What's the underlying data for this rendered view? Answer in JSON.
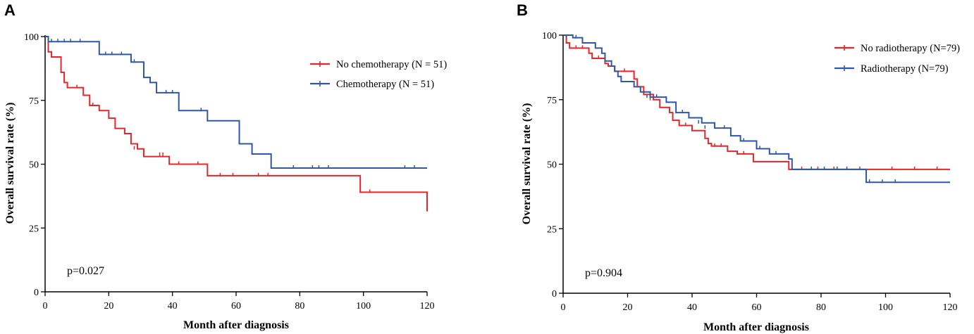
{
  "chart_data": [
    {
      "type": "line",
      "panel": "A",
      "xlabel": "Month after diagnosis",
      "ylabel": "Overall survival rate (%)",
      "xlim": [
        0,
        120
      ],
      "ylim": [
        0,
        100
      ],
      "xticks": [
        0,
        20,
        40,
        60,
        80,
        100,
        120
      ],
      "yticks": [
        0,
        25,
        50,
        75,
        100
      ],
      "p_value": "p=0.027",
      "legend_position": "top-right",
      "series": [
        {
          "name": "No chemotherapy (N = 51)",
          "color": "#e8262a",
          "steps": [
            [
              0,
              100
            ],
            [
              1,
              94
            ],
            [
              2,
              92
            ],
            [
              5,
              86
            ],
            [
              6,
              82
            ],
            [
              7,
              80
            ],
            [
              12,
              77
            ],
            [
              14,
              73
            ],
            [
              17,
              71
            ],
            [
              20,
              68
            ],
            [
              22,
              64
            ],
            [
              25,
              62
            ],
            [
              27,
              58
            ],
            [
              29,
              56
            ],
            [
              31,
              53
            ],
            [
              39,
              50
            ],
            [
              51,
              45.5
            ],
            [
              99,
              39
            ],
            [
              120,
              31.5
            ]
          ],
          "censors": [
            [
              10,
              80
            ],
            [
              15,
              73
            ],
            [
              28,
              56
            ],
            [
              36,
              53.5
            ],
            [
              37,
              53.5
            ],
            [
              42,
              50
            ],
            [
              48,
              50
            ],
            [
              55,
              45.5
            ],
            [
              59,
              45.5
            ],
            [
              67,
              45.5
            ],
            [
              70,
              45.5
            ],
            [
              102,
              39
            ]
          ],
          "end_x": 120
        },
        {
          "name": "Chemotherapy (N = 51)",
          "color": "#2e58a6",
          "steps": [
            [
              0,
              100
            ],
            [
              1,
              98
            ],
            [
              17,
              93
            ],
            [
              27,
              90
            ],
            [
              31,
              84
            ],
            [
              33,
              82
            ],
            [
              35,
              78
            ],
            [
              42,
              71
            ],
            [
              51,
              67
            ],
            [
              61,
              58
            ],
            [
              65,
              54
            ],
            [
              71,
              48.5
            ]
          ],
          "censors": [
            [
              2,
              98
            ],
            [
              4,
              98
            ],
            [
              6,
              98
            ],
            [
              8,
              98
            ],
            [
              11,
              98
            ],
            [
              19,
              93
            ],
            [
              21,
              93
            ],
            [
              24,
              93
            ],
            [
              28,
              90
            ],
            [
              38,
              78
            ],
            [
              40,
              78
            ],
            [
              49,
              71
            ],
            [
              78,
              48.5
            ],
            [
              84,
              48.5
            ],
            [
              86,
              48.5
            ],
            [
              89,
              48.5
            ],
            [
              113,
              48.5
            ],
            [
              116,
              48.5
            ]
          ],
          "end_x": 120
        }
      ]
    },
    {
      "type": "line",
      "panel": "B",
      "xlabel": "Month after diagnosis",
      "ylabel": "Overall survival rate (%)",
      "xlim": [
        0,
        120
      ],
      "ylim": [
        0,
        100
      ],
      "xticks": [
        0,
        20,
        40,
        60,
        80,
        100,
        120
      ],
      "yticks": [
        0,
        25,
        50,
        75,
        100
      ],
      "p_value": "p=0.904",
      "legend_position": "top-right",
      "series": [
        {
          "name": "No radiotherapy (N=79)",
          "color": "#e8262a",
          "steps": [
            [
              0,
              100
            ],
            [
              1,
              97
            ],
            [
              2,
              95
            ],
            [
              8,
              93
            ],
            [
              9,
              91
            ],
            [
              13,
              89
            ],
            [
              14,
              88
            ],
            [
              16,
              86
            ],
            [
              22,
              83
            ],
            [
              23,
              80
            ],
            [
              25,
              77
            ],
            [
              28,
              75
            ],
            [
              30,
              72
            ],
            [
              33,
              70
            ],
            [
              34,
              67
            ],
            [
              36,
              65
            ],
            [
              40,
              63
            ],
            [
              44,
              60
            ],
            [
              45,
              58
            ],
            [
              46,
              57
            ],
            [
              51,
              55
            ],
            [
              54,
              54
            ],
            [
              59,
              51
            ],
            [
              70,
              48
            ]
          ],
          "censors": [
            [
              4,
              95
            ],
            [
              6,
              95
            ],
            [
              11,
              91
            ],
            [
              19,
              86
            ],
            [
              27,
              75
            ],
            [
              38,
              65
            ],
            [
              47,
              57
            ],
            [
              49,
              57
            ],
            [
              56,
              54
            ],
            [
              74,
              48
            ],
            [
              79,
              48
            ],
            [
              84,
              48
            ],
            [
              92,
              48
            ],
            [
              102,
              48
            ],
            [
              109,
              48
            ],
            [
              116,
              48
            ]
          ],
          "end_x": 120
        },
        {
          "name": "Radiotherapy (N=79)",
          "color": "#2e58a6",
          "steps": [
            [
              0,
              100
            ],
            [
              3,
              99
            ],
            [
              6,
              97
            ],
            [
              10,
              95
            ],
            [
              12,
              93
            ],
            [
              13,
              90
            ],
            [
              15,
              88
            ],
            [
              16,
              86
            ],
            [
              17,
              84
            ],
            [
              18,
              82
            ],
            [
              22,
              80
            ],
            [
              24,
              78
            ],
            [
              27,
              76
            ],
            [
              32,
              74
            ],
            [
              35,
              70
            ],
            [
              39,
              68
            ],
            [
              43,
              66
            ],
            [
              47,
              64
            ],
            [
              52,
              61
            ],
            [
              55,
              59
            ],
            [
              60,
              56
            ],
            [
              64,
              54
            ],
            [
              70,
              52
            ],
            [
              71,
              48
            ],
            [
              94,
              43
            ]
          ],
          "censors": [
            [
              1,
              99
            ],
            [
              4,
              99
            ],
            [
              26,
              76
            ],
            [
              29,
              76
            ],
            [
              37,
              70
            ],
            [
              42,
              66
            ],
            [
              44,
              64
            ],
            [
              50,
              64
            ],
            [
              56,
              59
            ],
            [
              61,
              56
            ],
            [
              66,
              54
            ],
            [
              77,
              48
            ],
            [
              81,
              48
            ],
            [
              85,
              48
            ],
            [
              88,
              48
            ],
            [
              95,
              43
            ],
            [
              99,
              43
            ],
            [
              103,
              43
            ]
          ],
          "end_x": 120
        }
      ]
    }
  ]
}
